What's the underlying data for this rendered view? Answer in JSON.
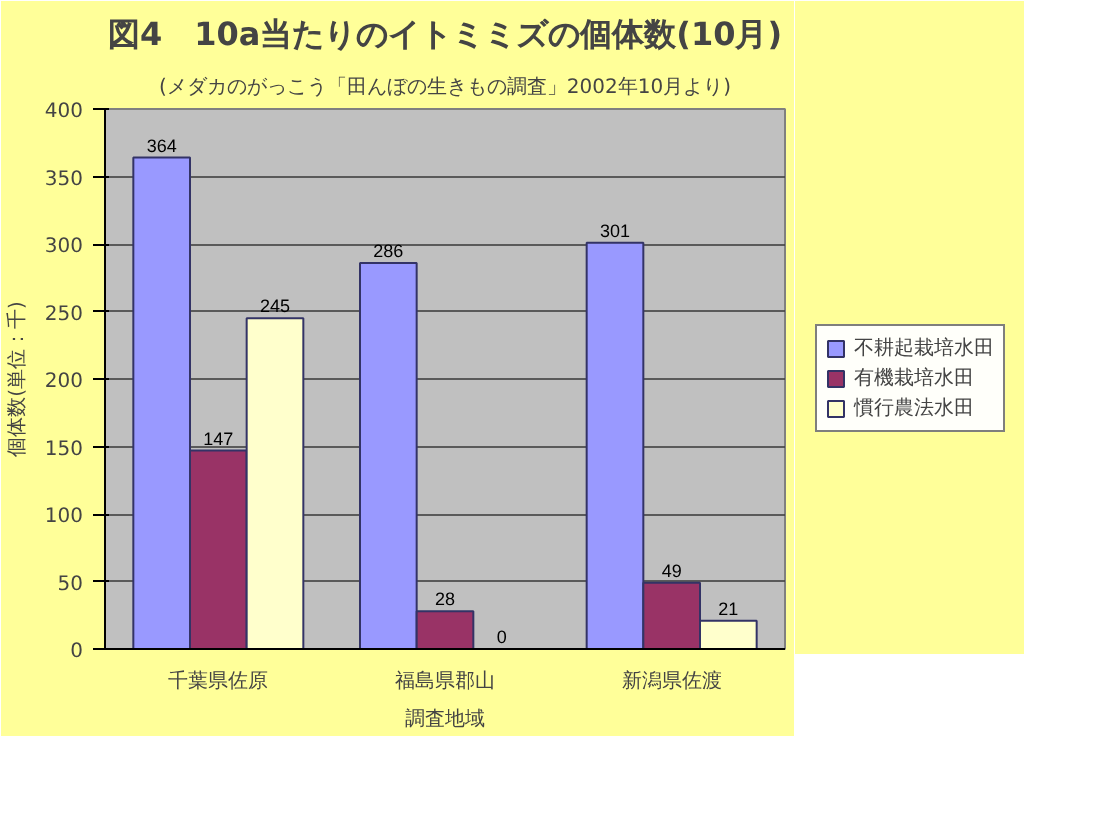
{
  "chart_data": {
    "type": "bar",
    "title": "図4　10a当たりのイトミミズの個体数(10月)",
    "subtitle": "(メダカのがっこう「田んぼの生きもの調査」2002年10月より)",
    "xlabel": "調査地域",
    "ylabel": "個体数(単位：千)",
    "categories": [
      "千葉県佐原",
      "福島県郡山",
      "新潟県佐渡"
    ],
    "series": [
      {
        "name": "不耕起栽培水田",
        "color": "#9999ff",
        "values": [
          364,
          286,
          301
        ]
      },
      {
        "name": "有機栽培水田",
        "color": "#993366",
        "values": [
          147,
          28,
          49
        ]
      },
      {
        "name": "慣行農法水田",
        "color": "#ffffcc",
        "values": [
          245,
          0,
          21
        ]
      }
    ],
    "ylim": [
      0,
      400
    ],
    "yticks": [
      0,
      50,
      100,
      150,
      200,
      250,
      300,
      350,
      400
    ],
    "grid": "y",
    "legend": "right",
    "data_labels": true
  }
}
